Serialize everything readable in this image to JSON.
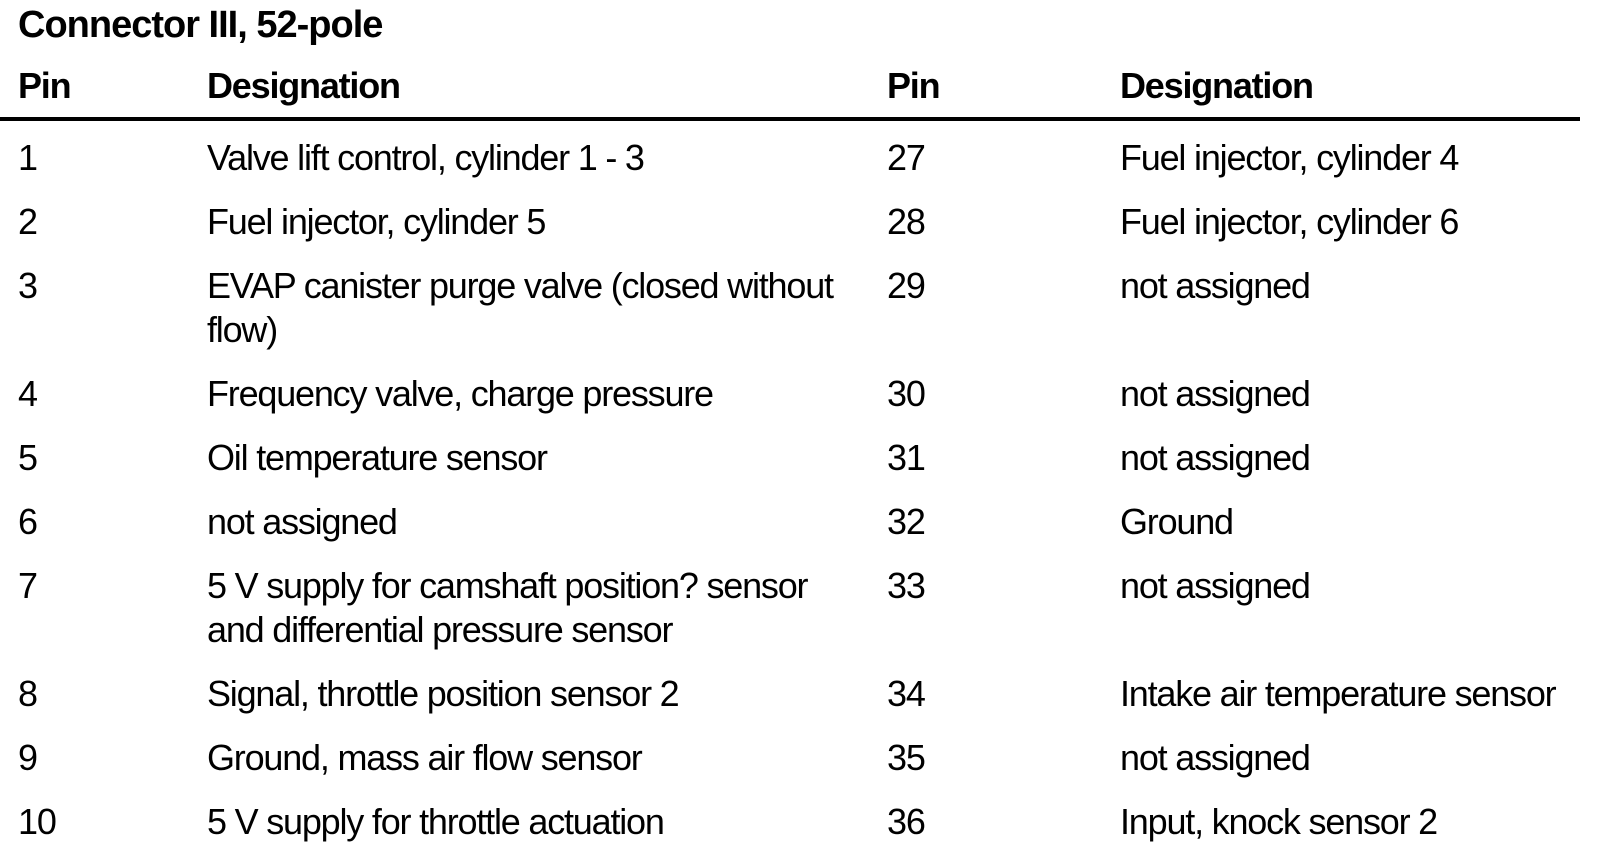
{
  "title": "Connector III, 52-pole",
  "colors": {
    "text": "#000000",
    "background": "#ffffff",
    "rule": "#000000"
  },
  "table": {
    "headers": {
      "pin": "Pin",
      "designation": "Designation"
    },
    "rows": [
      {
        "left_pin": "1",
        "left_desig": "Valve lift control, cylinder 1 - 3",
        "right_pin": "27",
        "right_desig": "Fuel injector, cylinder 4"
      },
      {
        "left_pin": "2",
        "left_desig": "Fuel injector, cylinder 5",
        "right_pin": "28",
        "right_desig": "Fuel injector, cylinder 6"
      },
      {
        "left_pin": "3",
        "left_desig": "EVAP canister purge valve (closed without\nflow)",
        "right_pin": "29",
        "right_desig": "not assigned"
      },
      {
        "left_pin": "4",
        "left_desig": "Frequency valve, charge pressure",
        "right_pin": "30",
        "right_desig": "not assigned"
      },
      {
        "left_pin": "5",
        "left_desig": "Oil temperature sensor",
        "right_pin": "31",
        "right_desig": "not assigned"
      },
      {
        "left_pin": "6",
        "left_desig": "not assigned",
        "right_pin": "32",
        "right_desig": "Ground"
      },
      {
        "left_pin": "7",
        "left_desig": "5 V supply for camshaft position? sensor\nand differential pressure sensor",
        "right_pin": "33",
        "right_desig": "not assigned"
      },
      {
        "left_pin": "8",
        "left_desig": "Signal, throttle position sensor 2",
        "right_pin": "34",
        "right_desig": "Intake air temperature sensor"
      },
      {
        "left_pin": "9",
        "left_desig": "Ground, mass air flow sensor",
        "right_pin": "35",
        "right_desig": "not assigned"
      },
      {
        "left_pin": "10",
        "left_desig": "5 V supply for throttle actuation",
        "right_pin": "36",
        "right_desig": "Input, knock sensor 2"
      }
    ]
  }
}
